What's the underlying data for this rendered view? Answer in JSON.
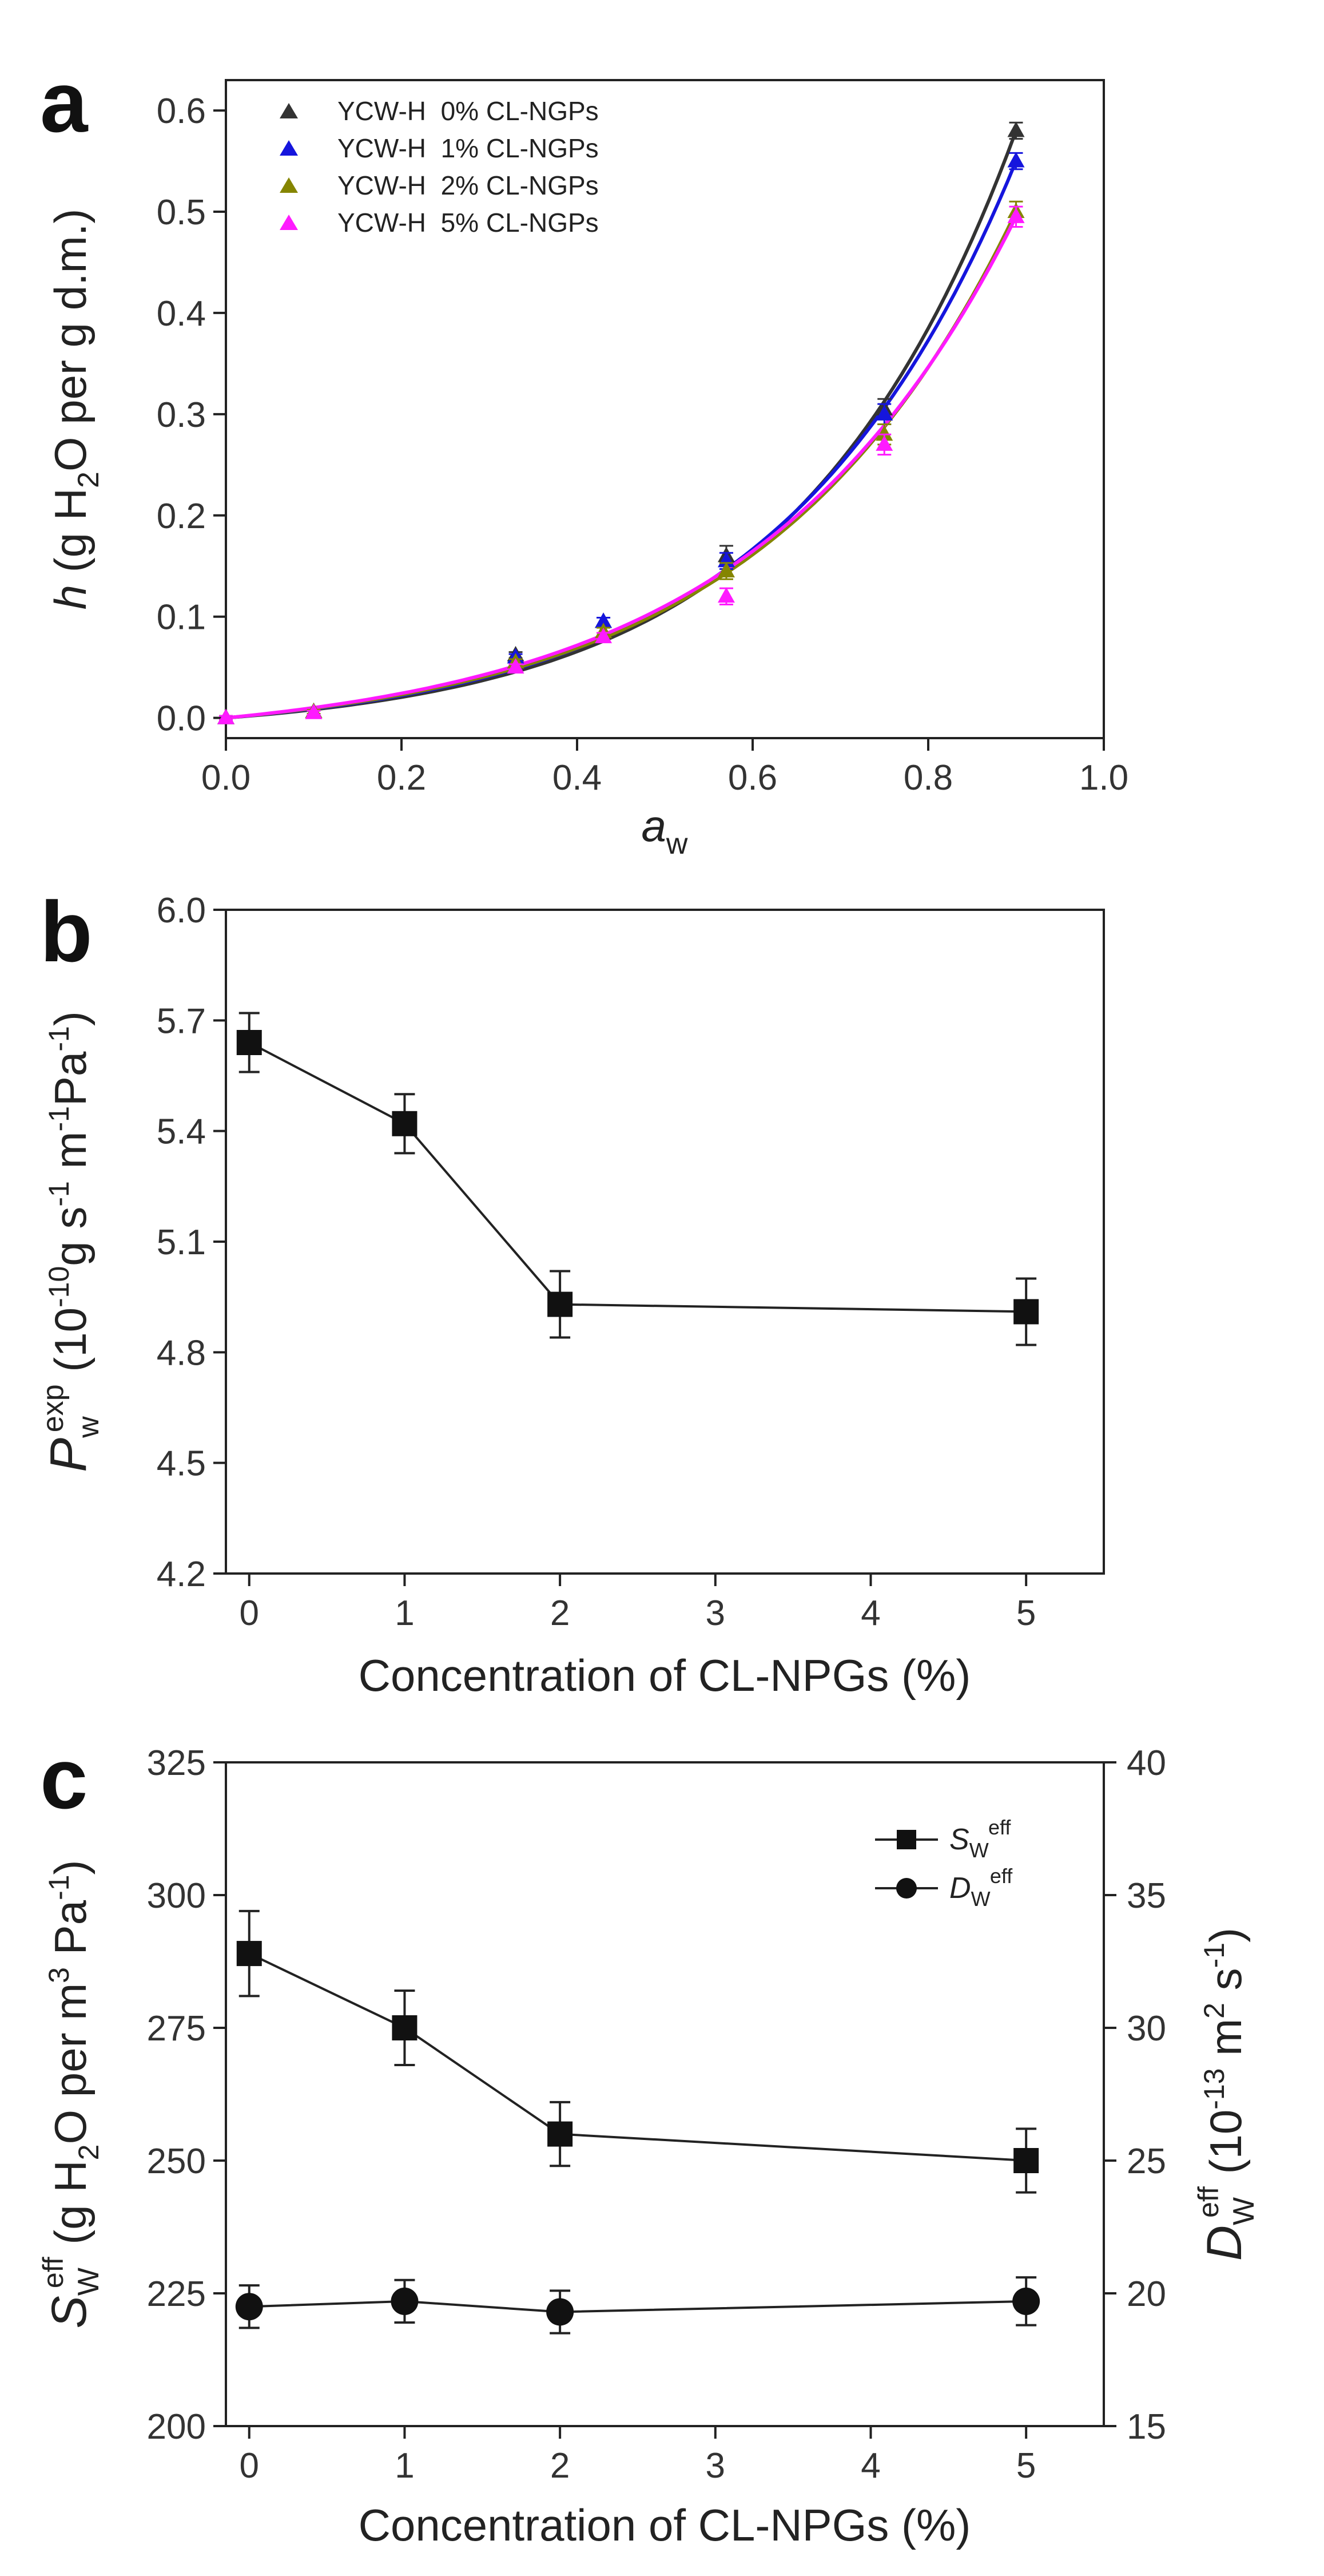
{
  "chart_data": [
    {
      "panel": "a",
      "type": "scatter",
      "panel_label": "a",
      "xlabel": "a",
      "xlabel_sub": "w",
      "ylabel_main": "h",
      "ylabel_rest": " (g H",
      "ylabel_sub": "2",
      "ylabel_tail": "O per g d.m.)",
      "xlim": [
        0.0,
        1.0
      ],
      "ylim": [
        -0.02,
        0.63
      ],
      "xticks": [
        0.0,
        0.2,
        0.4,
        0.6,
        0.8,
        1.0
      ],
      "xtick_labels": [
        "0.0",
        "0.2",
        "0.4",
        "0.6",
        "0.8",
        "1.0"
      ],
      "yticks": [
        0.0,
        0.1,
        0.2,
        0.3,
        0.4,
        0.5,
        0.6
      ],
      "ytick_labels": [
        "0.0",
        "0.1",
        "0.2",
        "0.3",
        "0.4",
        "0.5",
        "0.6"
      ],
      "legend_position": "top-left",
      "x": [
        0.0,
        0.1,
        0.33,
        0.43,
        0.57,
        0.75,
        0.9
      ],
      "series": [
        {
          "name": "YCW-H  0% CL-NGPs",
          "color": "#333333",
          "values": [
            0.0,
            0.006,
            0.062,
            0.095,
            0.16,
            0.305,
            0.58
          ],
          "errors": [
            0.002,
            0.002,
            0.003,
            0.004,
            0.01,
            0.01,
            0.008
          ],
          "fit_k": 9.9
        },
        {
          "name": "YCW-H  1% CL-NGPs",
          "color": "#1515dd",
          "values": [
            0.0,
            0.006,
            0.06,
            0.095,
            0.155,
            0.3,
            0.55
          ],
          "errors": [
            0.002,
            0.002,
            0.003,
            0.004,
            0.008,
            0.01,
            0.008
          ],
          "fit_k": 9.3
        },
        {
          "name": "YCW-H  2% CL-NGPs",
          "color": "#858500",
          "values": [
            0.0,
            0.006,
            0.055,
            0.085,
            0.145,
            0.28,
            0.5
          ],
          "errors": [
            0.002,
            0.002,
            0.003,
            0.004,
            0.008,
            0.01,
            0.01
          ],
          "fit_k": 8.7
        },
        {
          "name": "YCW-H  5% CL-NGPs",
          "color": "#ff1aff",
          "values": [
            0.0,
            0.005,
            0.05,
            0.08,
            0.12,
            0.27,
            0.495
          ],
          "errors": [
            0.002,
            0.002,
            0.003,
            0.004,
            0.008,
            0.01,
            0.01
          ],
          "fit_k": 8.4
        }
      ]
    },
    {
      "panel": "b",
      "type": "line",
      "panel_label": "b",
      "xlabel": "Concentration of CL-NPGs (%)",
      "ylabel_main": "P",
      "ylabel_sub": "w",
      "ylabel_sup": "exp",
      "ylabel_rest": " (10",
      "ylabel_exp1": "-10",
      "ylabel_mid1": "g s",
      "ylabel_exp2": "-1",
      "ylabel_mid2": " m",
      "ylabel_exp3": "-1",
      "ylabel_mid3": "Pa",
      "ylabel_exp4": "-1",
      "ylabel_tail": ")",
      "xlim": [
        -0.15,
        5.5
      ],
      "ylim": [
        4.2,
        6.0
      ],
      "xticks": [
        0,
        1,
        2,
        3,
        4,
        5
      ],
      "xtick_labels": [
        "0",
        "1",
        "2",
        "3",
        "4",
        "5"
      ],
      "yticks": [
        4.2,
        4.5,
        4.8,
        5.1,
        5.4,
        5.7,
        6.0
      ],
      "ytick_labels": [
        "4.2",
        "4.5",
        "4.8",
        "5.1",
        "5.4",
        "5.7",
        "6.0"
      ],
      "categories": [
        "0",
        "1",
        "2",
        "5"
      ],
      "x": [
        0,
        1,
        2,
        5
      ],
      "values": [
        5.64,
        5.42,
        4.93,
        4.91
      ],
      "errors": [
        0.08,
        0.08,
        0.09,
        0.09
      ]
    },
    {
      "panel": "c",
      "type": "line",
      "panel_label": "c",
      "xlabel": "Concentration of CL-NPGs (%)",
      "xlim": [
        -0.15,
        5.5
      ],
      "xticks": [
        0,
        1,
        2,
        3,
        4,
        5
      ],
      "xtick_labels": [
        "0",
        "1",
        "2",
        "3",
        "4",
        "5"
      ],
      "ylabel_left_main": "S",
      "ylabel_left_sub": "W",
      "ylabel_left_sup": "eff",
      "ylabel_left_rest": " (g H",
      "ylabel_left_sub2": "2",
      "ylabel_left_mid": "O per m",
      "ylabel_left_exp": "3",
      "ylabel_left_mid2": " Pa",
      "ylabel_left_exp2": "-1",
      "ylabel_left_tail": ")",
      "ylim_left": [
        200,
        325
      ],
      "yticks_left": [
        200,
        225,
        250,
        275,
        300,
        325
      ],
      "ytick_labels_left": [
        "200",
        "225",
        "250",
        "275",
        "300",
        "325"
      ],
      "ylabel_right_main": "D",
      "ylabel_right_sub": "W",
      "ylabel_right_sup": "eff",
      "ylabel_right_rest": " (10",
      "ylabel_right_exp": "-13",
      "ylabel_right_mid": " m",
      "ylabel_right_exp2": "2",
      "ylabel_right_mid2": " s",
      "ylabel_right_exp3": "-1",
      "ylabel_right_tail": ")",
      "ylim_right": [
        15,
        40
      ],
      "yticks_right": [
        15,
        20,
        25,
        30,
        35,
        40
      ],
      "ytick_labels_right": [
        "15",
        "20",
        "25",
        "30",
        "35",
        "40"
      ],
      "legend_position": "top-right",
      "series": [
        {
          "name_main": "S",
          "name_sub": "W",
          "name_sup": "eff",
          "axis": "left",
          "marker": "square",
          "x": [
            0,
            1,
            2,
            5
          ],
          "values": [
            289,
            275,
            255,
            250
          ],
          "errors": [
            8,
            7,
            6,
            6
          ]
        },
        {
          "name_main": "D",
          "name_sub": "W",
          "name_sup": "eff",
          "axis": "right",
          "marker": "circle",
          "x": [
            0,
            1,
            2,
            5
          ],
          "values": [
            19.5,
            19.7,
            19.3,
            19.7
          ],
          "errors": [
            0.8,
            0.8,
            0.8,
            0.9
          ]
        }
      ]
    }
  ]
}
